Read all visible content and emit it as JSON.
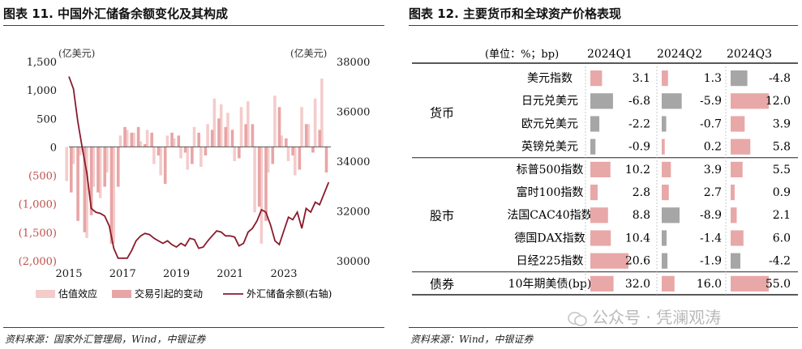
{
  "left_panel": {
    "title": "图表 11. 中国外汇储备余额变化及其构成",
    "source": "资料来源：国家外汇管理局，Wind，中银证券"
  },
  "right_panel": {
    "title": "图表 12. 主要货币和全球资产价格表现",
    "source": "资料来源：Wind，中银证券"
  },
  "watermark": "公众号 · 凭澜观涛",
  "colors": {
    "accent": "#8c1d2b",
    "valuation": "#f4cccc",
    "trade": "#e8a5a5",
    "reserve_line": "#8b1a2b",
    "negative_label": "#c0504d",
    "table_bar": "#e8a8a8",
    "table_bar_negative": "#a6a6a6"
  },
  "chart_data": [
    {
      "type": "bar",
      "title": "图表 11. 中国外汇储备余额变化及其构成",
      "left_unit": "(亿美元)",
      "right_unit": "(亿美元)",
      "ylim_left": [
        -2000,
        1500
      ],
      "yticks_left": [
        1500,
        1000,
        500,
        0,
        -500,
        -1000,
        -1500,
        -2000
      ],
      "ytick_labels_left": [
        "1,500",
        "1,000",
        "500",
        "0",
        "(500)",
        "(1,000)",
        "(1,500)",
        "(2,000)"
      ],
      "ylim_right": [
        30000,
        38000
      ],
      "yticks_right": [
        38000,
        36000,
        34000,
        32000,
        30000
      ],
      "xlim": [
        2015,
        2024.75
      ],
      "xticks": [
        "2015",
        "2017",
        "2019",
        "2021",
        "2023"
      ],
      "series": [
        {
          "name": "估值效应",
          "kind": "bar",
          "axis": "left",
          "x": [
            2015.0,
            2015.25,
            2015.5,
            2015.75,
            2016.0,
            2016.25,
            2016.5,
            2016.75,
            2017.0,
            2017.25,
            2017.5,
            2017.75,
            2018.0,
            2018.25,
            2018.5,
            2018.75,
            2019.0,
            2019.25,
            2019.5,
            2019.75,
            2020.0,
            2020.25,
            2020.5,
            2020.75,
            2021.0,
            2021.25,
            2021.5,
            2021.75,
            2022.0,
            2022.25,
            2022.5,
            2022.75,
            2023.0,
            2023.25,
            2023.5,
            2023.75,
            2024.0,
            2024.25,
            2024.5
          ],
          "values": [
            -600,
            -300,
            -150,
            -1600,
            -700,
            -900,
            -450,
            -1700,
            200,
            300,
            250,
            100,
            300,
            -300,
            -500,
            200,
            150,
            -200,
            -400,
            350,
            -350,
            400,
            850,
            750,
            600,
            -250,
            700,
            800,
            -1150,
            -1700,
            -450,
            900,
            200,
            -250,
            -500,
            700,
            400,
            850,
            1200
          ]
        },
        {
          "name": "交易引起的变动",
          "kind": "bar",
          "axis": "left",
          "x": [
            2015.0,
            2015.25,
            2015.5,
            2015.75,
            2016.0,
            2016.25,
            2016.5,
            2016.75,
            2017.0,
            2017.25,
            2017.5,
            2017.75,
            2018.0,
            2018.25,
            2018.5,
            2018.75,
            2019.0,
            2019.25,
            2019.5,
            2019.75,
            2020.0,
            2020.25,
            2020.5,
            2020.75,
            2021.0,
            2021.25,
            2021.5,
            2021.75,
            2022.0,
            2022.25,
            2022.5,
            2022.75,
            2023.0,
            2023.25,
            2023.5,
            2023.75,
            2024.0,
            2024.25,
            2024.5
          ],
          "values": [
            -800,
            -1300,
            -1500,
            -1200,
            -800,
            -700,
            -1700,
            -700,
            350,
            250,
            350,
            50,
            250,
            -150,
            -650,
            250,
            200,
            -100,
            -300,
            250,
            -150,
            300,
            500,
            350,
            300,
            -200,
            400,
            400,
            -1050,
            -1300,
            -300,
            700,
            150,
            -150,
            -400,
            400,
            -100,
            300,
            -450
          ]
        },
        {
          "name": "外汇储备余额(右轴)",
          "kind": "line",
          "axis": "right",
          "x": [
            2015.0,
            2015.17,
            2015.33,
            2015.5,
            2015.67,
            2015.83,
            2016.0,
            2016.17,
            2016.33,
            2016.5,
            2016.67,
            2016.83,
            2017.0,
            2017.17,
            2017.33,
            2017.5,
            2017.67,
            2017.83,
            2018.0,
            2018.17,
            2018.33,
            2018.5,
            2018.67,
            2018.83,
            2019.0,
            2019.17,
            2019.33,
            2019.5,
            2019.67,
            2019.83,
            2020.0,
            2020.17,
            2020.33,
            2020.5,
            2020.67,
            2020.83,
            2021.0,
            2021.17,
            2021.33,
            2021.5,
            2021.67,
            2021.83,
            2022.0,
            2022.17,
            2022.33,
            2022.5,
            2022.67,
            2022.83,
            2023.0,
            2023.17,
            2023.33,
            2023.5,
            2023.67,
            2023.83,
            2024.0,
            2024.17,
            2024.33,
            2024.5,
            2024.67
          ],
          "values": [
            37400,
            36900,
            35600,
            34500,
            33500,
            32100,
            31950,
            31900,
            31800,
            31400,
            30500,
            30100,
            30100,
            30100,
            30400,
            30800,
            31000,
            31100,
            31050,
            30900,
            30800,
            30700,
            30800,
            30650,
            30550,
            30700,
            30600,
            30900,
            30850,
            30500,
            30550,
            30800,
            31000,
            31200,
            31150,
            31000,
            31000,
            30950,
            30600,
            30700,
            31150,
            31300,
            31600,
            32050,
            31950,
            31450,
            30800,
            30650,
            31200,
            31750,
            31650,
            31950,
            31300,
            32100,
            31950,
            32350,
            32250,
            32700,
            33150
          ]
        }
      ]
    },
    {
      "type": "table",
      "title": "图表 12. 主要货币和全球资产价格表现",
      "unit_label": "(单位：%；bp)",
      "columns": [
        "2024Q1",
        "2024Q2",
        "2024Q3"
      ],
      "groups": [
        {
          "name": "货币",
          "rows": [
            {
              "label": "美元指数",
              "values": [
                3.1,
                1.3,
                -4.8
              ]
            },
            {
              "label": "日元兑美元",
              "values": [
                -6.8,
                -5.9,
                12.0
              ]
            },
            {
              "label": "欧元兑美元",
              "values": [
                -2.2,
                -0.7,
                3.9
              ]
            },
            {
              "label": "英镑兑美元",
              "values": [
                -0.9,
                0.2,
                5.8
              ]
            }
          ]
        },
        {
          "name": "股市",
          "rows": [
            {
              "label": "标普500指数",
              "values": [
                10.2,
                3.9,
                5.5
              ]
            },
            {
              "label": "富时100指数",
              "values": [
                2.8,
                2.7,
                0.9
              ]
            },
            {
              "label": "法国CAC40指数",
              "values": [
                8.8,
                -8.9,
                2.1
              ]
            },
            {
              "label": "德国DAX指数",
              "values": [
                10.4,
                -1.4,
                6.0
              ]
            },
            {
              "label": "日经225指数",
              "values": [
                20.6,
                -1.9,
                -4.2
              ]
            }
          ]
        },
        {
          "name": "债券",
          "rows": [
            {
              "label": "10年期美债(bp)",
              "values": [
                32.0,
                16.0,
                55.0
              ]
            }
          ]
        }
      ]
    }
  ]
}
